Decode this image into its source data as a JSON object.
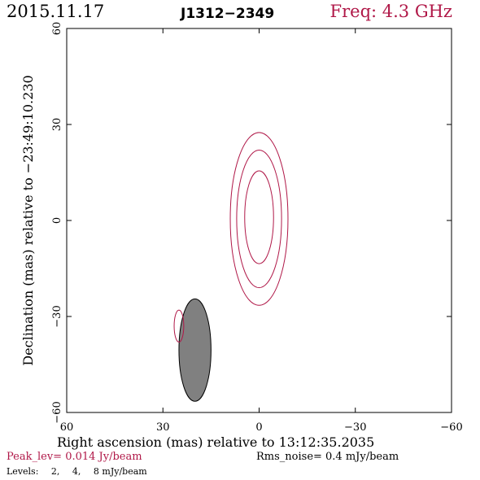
{
  "header": {
    "date": "2015.11.17",
    "source": "J1312−2349",
    "freq": "Freq: 4.3 GHz"
  },
  "footer": {
    "peak": "Peak_lev=  0.014 Jy/beam",
    "rms": "Rms_noise=  0.4 mJy/beam",
    "levels_label": "Levels:",
    "levels": [
      "2,",
      "4,",
      "8 mJy/beam"
    ]
  },
  "colors": {
    "contour": "#b01848",
    "beam_fill": "#808080",
    "axis": "#000000"
  },
  "chart_data": {
    "type": "contour",
    "title": "J1312−2349",
    "xlabel": "Right ascension (mas) relative to 13:12:35.2035",
    "ylabel": "Declination (mas) relative to −23:49:10.230",
    "xlim": [
      60,
      -60
    ],
    "ylim": [
      -60,
      60
    ],
    "xticks": [
      60,
      30,
      0,
      -30,
      -60
    ],
    "yticks": [
      -60,
      -30,
      0,
      30,
      60
    ],
    "xtick_labels": [
      "60",
      "30",
      "0",
      "−30",
      "−60"
    ],
    "ytick_labels": [
      "−60",
      "−30",
      "0",
      "30",
      "60"
    ],
    "contour_levels_mJy": [
      2,
      4,
      8
    ],
    "contours": [
      {
        "level_mJy": 8,
        "x_center": 0,
        "y_center": 1,
        "x_halfwidth": 4.5,
        "y_halfwidth": 14.5
      },
      {
        "level_mJy": 4,
        "x_center": 0,
        "y_center": 0.5,
        "x_halfwidth": 7,
        "y_halfwidth": 21.5
      },
      {
        "level_mJy": 2,
        "x_center": 0,
        "y_center": 0.5,
        "x_halfwidth": 9,
        "y_halfwidth": 27
      },
      {
        "level_mJy": 2,
        "x_center": 25,
        "y_center": -33,
        "x_halfwidth": 1.5,
        "y_halfwidth": 5
      }
    ],
    "beam": {
      "x_center": 20,
      "y_center": -40.5,
      "major_mas": 32,
      "minor_mas": 10,
      "pa_deg": 0
    }
  }
}
